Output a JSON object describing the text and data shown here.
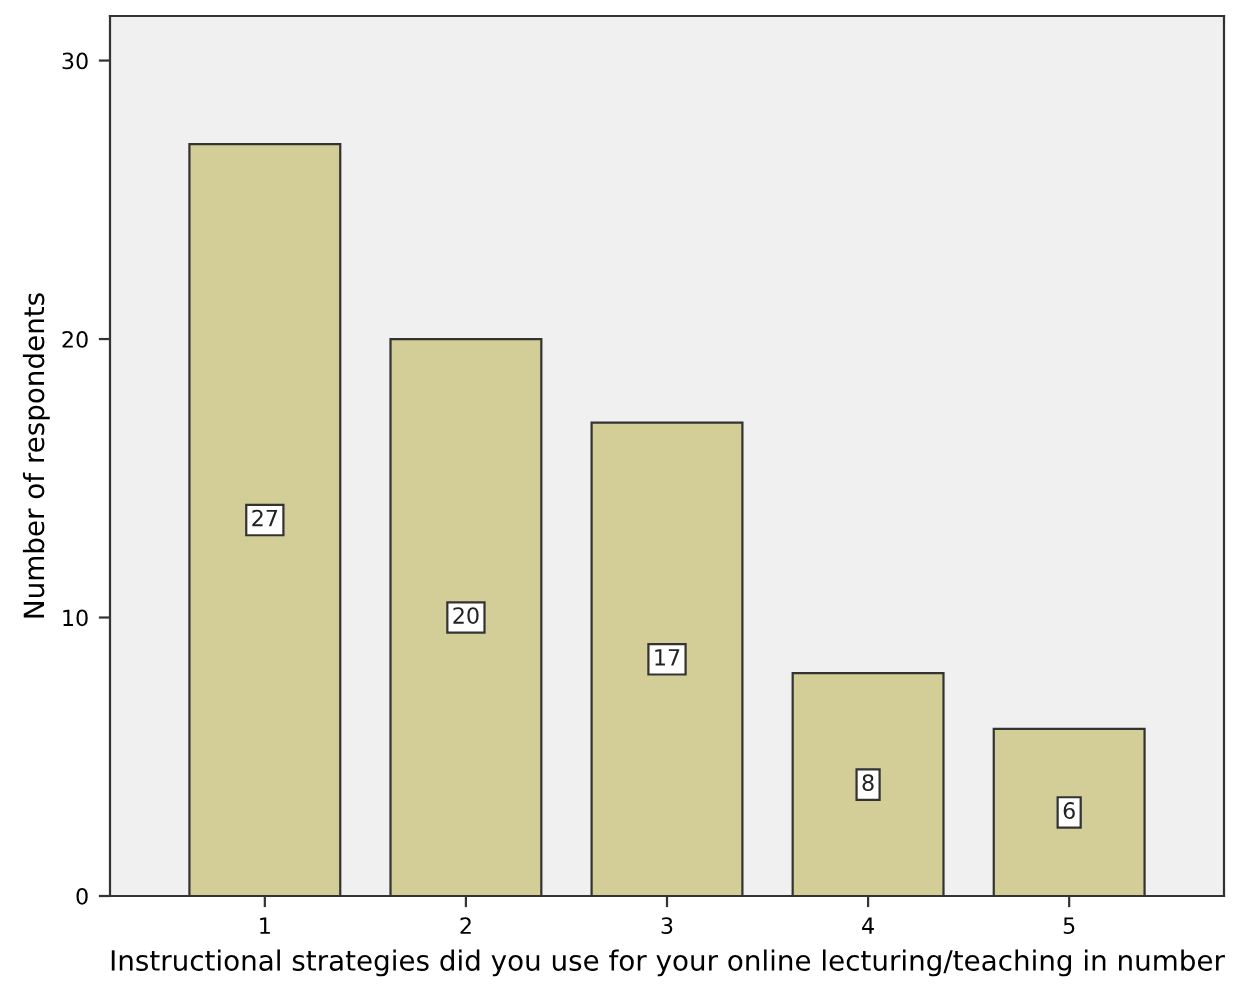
{
  "chart_data": {
    "type": "bar",
    "xlabel": "Instructional strategies did you use for your online lecturing/teaching in number",
    "ylabel": "Number of respondents",
    "categories": [
      "1",
      "2",
      "3",
      "4",
      "5"
    ],
    "values": [
      27,
      20,
      17,
      8,
      6
    ],
    "color": "#d3ce97",
    "ylim": [
      0,
      31.6
    ],
    "yticks": [
      0,
      10,
      20,
      30
    ],
    "grid": false,
    "data_labels": true
  }
}
